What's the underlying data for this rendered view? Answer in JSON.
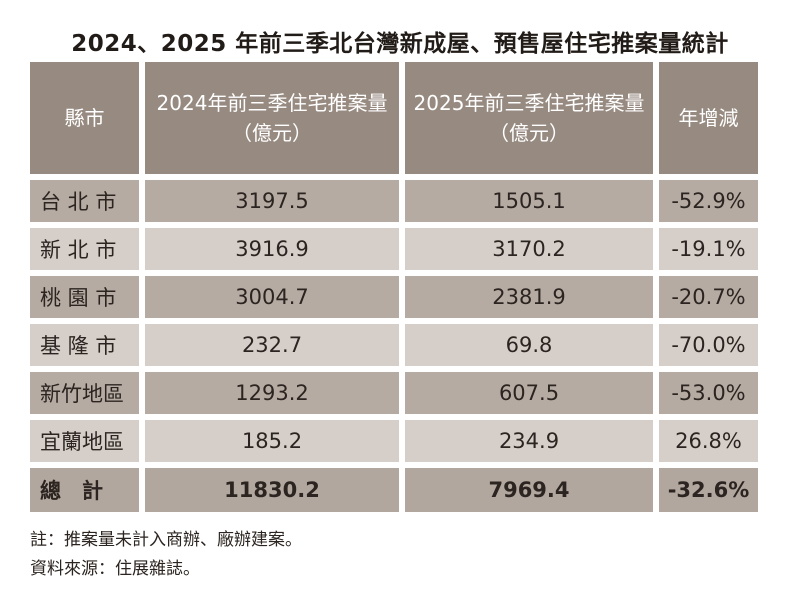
{
  "title": "2024、2025 年前三季北台灣新成屋、預售屋住宅推案量統計",
  "colors": {
    "page_bg": "#ffffff",
    "title_text": "#221c18",
    "header_bg": "#978a80",
    "header_text": "#ffffff",
    "row_dark_bg": "#b6aba2",
    "row_light_bg": "#d6cfc9",
    "total_bg": "#b2a79e",
    "body_text": "#2b2420"
  },
  "table": {
    "columns": [
      {
        "label": "縣市"
      },
      {
        "label_line1": "2024年前三季住宅推案量",
        "label_line2": "（億元）"
      },
      {
        "label_line1": "2025年前三季住宅推案量",
        "label_line2": "（億元）"
      },
      {
        "label": "年增減"
      }
    ],
    "rows": [
      {
        "region": "台 北 市",
        "amount_2024": "3197.5",
        "amount_2025": "1505.1",
        "yoy_change": "-52.9%"
      },
      {
        "region": "新 北 市",
        "amount_2024": "3916.9",
        "amount_2025": "3170.2",
        "yoy_change": "-19.1%"
      },
      {
        "region": "桃 園 市",
        "amount_2024": "3004.7",
        "amount_2025": "2381.9",
        "yoy_change": "-20.7%"
      },
      {
        "region": "基 隆 市",
        "amount_2024": "232.7",
        "amount_2025": "69.8",
        "yoy_change": "-70.0%"
      },
      {
        "region": "新竹地區",
        "amount_2024": "1293.2",
        "amount_2025": "607.5",
        "yoy_change": "-53.0%"
      },
      {
        "region": "宜蘭地區",
        "amount_2024": "185.2",
        "amount_2025": "234.9",
        "yoy_change": "26.8%"
      }
    ],
    "total_row": {
      "region": "總　計",
      "amount_2024": "11830.2",
      "amount_2025": "7969.4",
      "yoy_change": "-32.6%"
    }
  },
  "notes": [
    "註：推案量未計入商辦、廠辦建案。",
    "資料來源：住展雜誌。"
  ],
  "chart_data": {
    "type": "table",
    "title": "2024、2025 年前三季北台灣新成屋、預售屋住宅推案量統計",
    "columns": [
      "縣市",
      "2024年前三季住宅推案量（億元）",
      "2025年前三季住宅推案量（億元）",
      "年增減"
    ],
    "rows": [
      [
        "台北市",
        3197.5,
        1505.1,
        "-52.9%"
      ],
      [
        "新北市",
        3916.9,
        3170.2,
        "-19.1%"
      ],
      [
        "桃園市",
        3004.7,
        2381.9,
        "-20.7%"
      ],
      [
        "基隆市",
        232.7,
        69.8,
        "-70.0%"
      ],
      [
        "新竹地區",
        1293.2,
        607.5,
        "-53.0%"
      ],
      [
        "宜蘭地區",
        185.2,
        234.9,
        "26.8%"
      ]
    ],
    "total_row": [
      "總計",
      11830.2,
      7969.4,
      "-32.6%"
    ],
    "notes": [
      "註：推案量未計入商辦、廠辦建案。",
      "資料來源：住展雜誌。"
    ]
  }
}
